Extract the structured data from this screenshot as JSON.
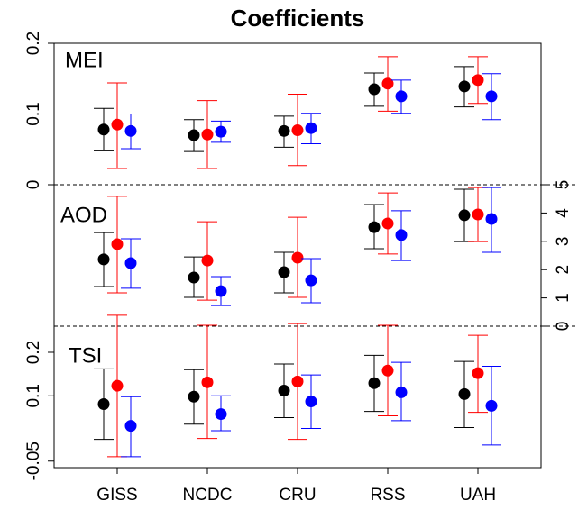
{
  "chart_data": {
    "type": "errorbar",
    "title": "Coefficients",
    "categories": [
      "GISS",
      "NCDC",
      "CRU",
      "RSS",
      "UAH"
    ],
    "xlim": [
      0.3,
      5.7
    ],
    "panels": [
      {
        "label": "MEI",
        "axis": "left",
        "ylim": [
          0,
          0.2
        ],
        "yticks": [
          0,
          0.1,
          0.2
        ],
        "series": [
          {
            "color": "#000000",
            "values": [
              0.078,
              0.07,
              0.076,
              0.135,
              0.139
            ],
            "lower": [
              0.048,
              0.047,
              0.053,
              0.111,
              0.11
            ],
            "upper": [
              0.108,
              0.092,
              0.097,
              0.158,
              0.167
            ]
          },
          {
            "color": "#ff0000",
            "values": [
              0.085,
              0.071,
              0.077,
              0.143,
              0.148
            ],
            "lower": [
              0.023,
              0.023,
              0.027,
              0.104,
              0.115
            ],
            "upper": [
              0.144,
              0.119,
              0.128,
              0.181,
              0.181
            ]
          },
          {
            "color": "#0000ff",
            "values": [
              0.076,
              0.075,
              0.08,
              0.125,
              0.125
            ],
            "lower": [
              0.051,
              0.06,
              0.058,
              0.101,
              0.092
            ],
            "upper": [
              0.1,
              0.09,
              0.101,
              0.148,
              0.157
            ]
          }
        ]
      },
      {
        "label": "AOD",
        "axis": "right",
        "ylim": [
          0,
          5
        ],
        "yticks": [
          0,
          1,
          2,
          3,
          4,
          5
        ],
        "series": [
          {
            "color": "#000000",
            "values": [
              2.36,
              1.72,
              1.91,
              3.5,
              3.92
            ],
            "lower": [
              1.4,
              1.02,
              1.18,
              2.74,
              2.99
            ],
            "upper": [
              3.31,
              2.45,
              2.61,
              4.3,
              4.84
            ]
          },
          {
            "color": "#ff0000",
            "values": [
              2.9,
              2.32,
              2.42,
              3.63,
              3.95
            ],
            "lower": [
              1.18,
              0.92,
              1.02,
              2.55,
              2.99
            ],
            "upper": [
              4.59,
              3.69,
              3.85,
              4.71,
              4.9
            ]
          },
          {
            "color": "#0000ff",
            "values": [
              2.23,
              1.24,
              1.62,
              3.22,
              3.79
            ],
            "lower": [
              1.34,
              0.73,
              0.83,
              2.32,
              2.61
            ],
            "upper": [
              3.09,
              1.75,
              2.39,
              4.08,
              4.9
            ]
          }
        ]
      },
      {
        "label": "TSI",
        "axis": "left",
        "ylim": [
          -0.065,
          0.26
        ],
        "yticks": [
          -0.05,
          0.1,
          0.2
        ],
        "series": [
          {
            "color": "#000000",
            "values": [
              0.081,
              0.098,
              0.112,
              0.129,
              0.104
            ],
            "lower": [
              0.0,
              0.035,
              0.05,
              0.064,
              0.027
            ],
            "upper": [
              0.162,
              0.16,
              0.173,
              0.193,
              0.179
            ]
          },
          {
            "color": "#ff0000",
            "values": [
              0.123,
              0.131,
              0.133,
              0.158,
              0.152
            ],
            "lower": [
              -0.04,
              0.002,
              0.0,
              0.054,
              0.062
            ],
            "upper": [
              0.285,
              0.262,
              0.266,
              0.262,
              0.239
            ]
          },
          {
            "color": "#0000ff",
            "values": [
              0.031,
              0.058,
              0.087,
              0.108,
              0.077
            ],
            "lower": [
              -0.04,
              0.02,
              0.025,
              0.043,
              -0.013
            ],
            "upper": [
              0.098,
              0.1,
              0.148,
              0.177,
              0.168
            ]
          }
        ]
      }
    ]
  }
}
